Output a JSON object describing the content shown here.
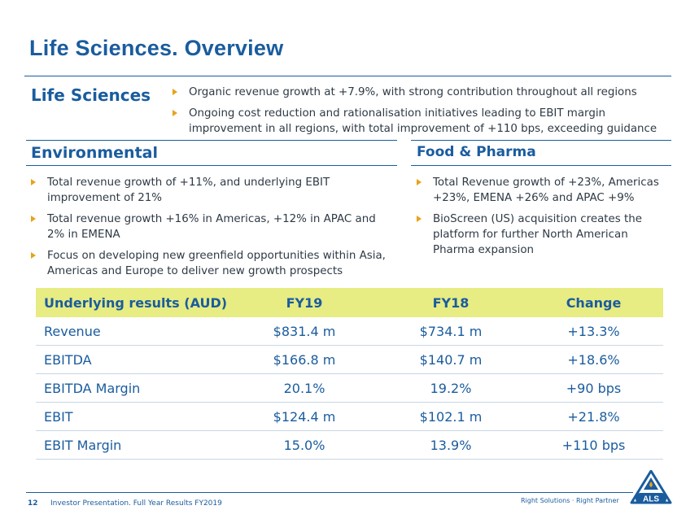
{
  "page_title": "Life Sciences. Overview",
  "life_sciences": {
    "heading": "Life Sciences",
    "bullets": [
      "Organic revenue growth at +7.9%, with strong contribution throughout all regions",
      "Ongoing cost reduction and rationalisation initiatives leading to EBIT margin improvement in all regions, with total  improvement of +110 bps, exceeding guidance"
    ]
  },
  "environmental": {
    "heading": "Environmental",
    "bullets": [
      "Total revenue growth of +11%, and underlying EBIT improvement of 21%",
      "Total revenue growth +16% in Americas, +12% in APAC and 2% in EMENA",
      "Focus on developing new greenfield opportunities within Asia, Americas and Europe to deliver new growth prospects"
    ]
  },
  "food_pharma": {
    "heading": "Food & Pharma",
    "bullets": [
      "Total Revenue growth of  +23%, Americas +23%, EMENA +26% and APAC +9%",
      "BioScreen (US) acquisition creates the platform for further North American Pharma expansion"
    ]
  },
  "results_table": {
    "headers": [
      "Underlying results (AUD)",
      "FY19",
      "FY18",
      "Change"
    ],
    "rows": [
      [
        "Revenue",
        "$831.4 m",
        "$734.1 m",
        "+13.3%"
      ],
      [
        "EBITDA",
        "$166.8 m",
        "$140.7 m",
        "+18.6%"
      ],
      [
        "EBITDA Margin",
        "20.1%",
        "19.2%",
        "+90 bps"
      ],
      [
        "EBIT",
        "$124.4 m",
        "$102.1 m",
        "+21.8%"
      ],
      [
        "EBIT Margin",
        "15.0%",
        "13.9%",
        "+110 bps"
      ]
    ]
  },
  "footer": {
    "page_number": "12",
    "text": "Investor Presentation. Full Year Results FY2019",
    "tagline": "Right Solutions · Right Partner",
    "logo_text": "ALS"
  },
  "colors": {
    "brand_blue": "#1a5c9e",
    "bullet_orange": "#e8a21a",
    "table_header_bg": "#e7ec83"
  }
}
